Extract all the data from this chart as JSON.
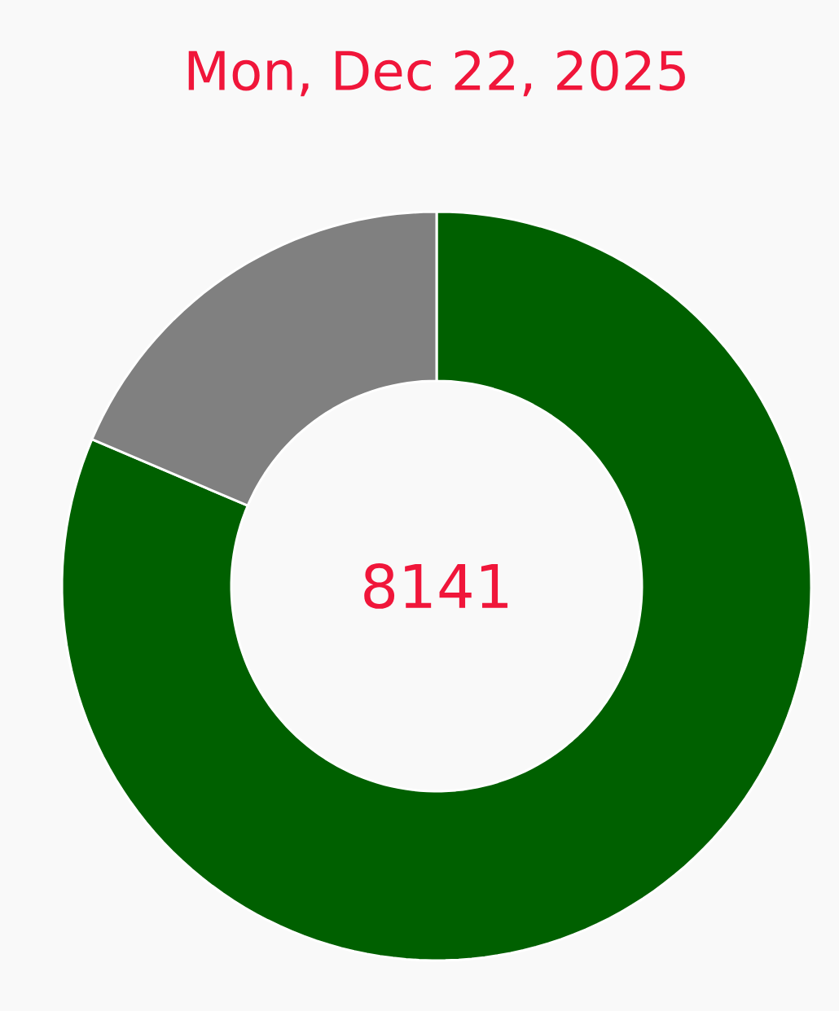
{
  "chart_data": {
    "type": "donut",
    "title": "Mon, Dec 22, 2025",
    "categories": [
      null,
      null
    ],
    "values": [
      81.41,
      18.59
    ],
    "colors": [
      "#006000",
      "#808080"
    ],
    "annotations": [
      "8141"
    ]
  }
}
